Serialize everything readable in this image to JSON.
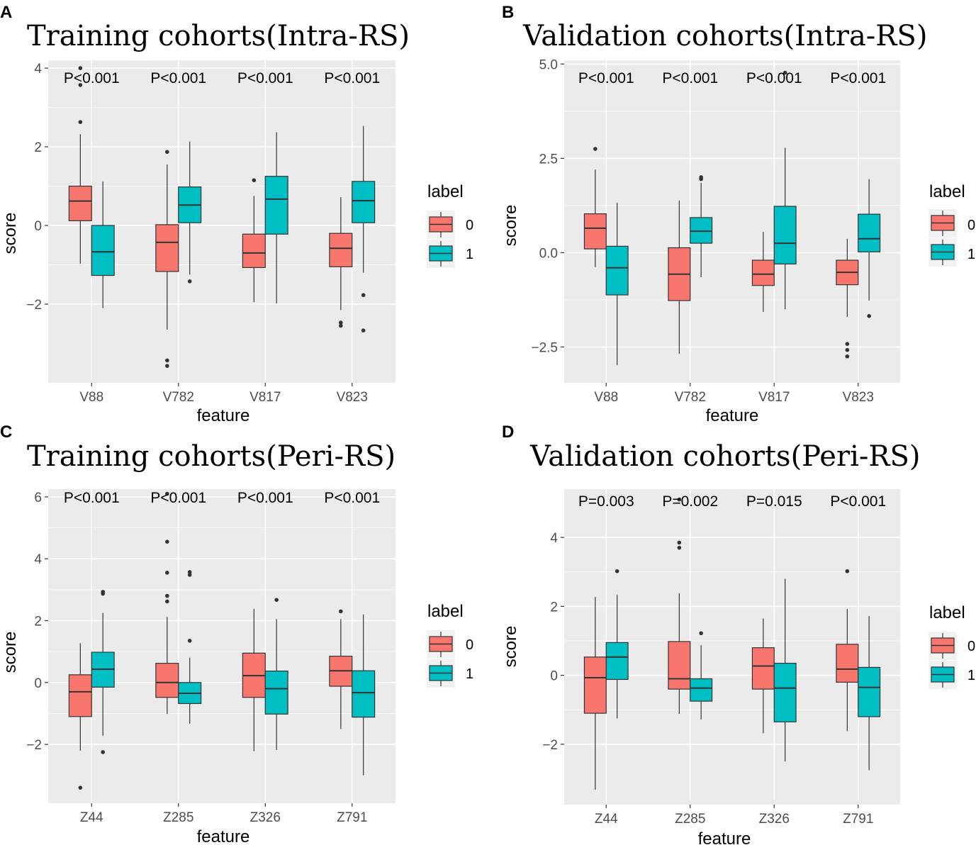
{
  "colors": {
    "panel_bg": "#ebebeb",
    "grid": "#ffffff",
    "group0": "#f8766d",
    "group1": "#00bfc4",
    "box_line": "#333333"
  },
  "chart_data": [
    {
      "type": "boxplot",
      "panel_label": "A",
      "title": "Training cohorts(Intra-RS)",
      "xlabel": "feature",
      "ylabel": "score",
      "ylim": [
        -4.0,
        4.2
      ],
      "yticks": [
        -2,
        0,
        2,
        4
      ],
      "ytick_labels": [
        "−2",
        "0",
        "2",
        "4"
      ],
      "categories": [
        "V88",
        "V782",
        "V817",
        "V823"
      ],
      "pvalues": [
        "P<0.001",
        "P<0.001",
        "P<0.001",
        "P<0.001"
      ],
      "legend": {
        "title": "label",
        "entries": [
          "0",
          "1"
        ]
      },
      "series": [
        {
          "name": "0",
          "boxes": [
            {
              "lw": -0.97,
              "q1": 0.12,
              "med": 0.62,
              "q3": 1.0,
              "uw": 2.32,
              "outliers": [
                2.63,
                3.57,
                4.0
              ]
            },
            {
              "lw": -2.65,
              "q1": -1.17,
              "med": -0.43,
              "q3": 0.02,
              "uw": 1.55,
              "outliers": [
                1.87,
                -3.43,
                -3.57
              ]
            },
            {
              "lw": -1.95,
              "q1": -1.07,
              "med": -0.7,
              "q3": -0.22,
              "uw": 0.75,
              "outliers": [
                1.15
              ]
            },
            {
              "lw": -2.15,
              "q1": -1.05,
              "med": -0.58,
              "q3": -0.2,
              "uw": 0.72,
              "outliers": [
                -2.47,
                -2.55
              ]
            }
          ]
        },
        {
          "name": "1",
          "boxes": [
            {
              "lw": -2.1,
              "q1": -1.27,
              "med": -0.67,
              "q3": 0.0,
              "uw": 1.12,
              "outliers": []
            },
            {
              "lw": -1.25,
              "q1": 0.07,
              "med": 0.52,
              "q3": 0.98,
              "uw": 2.13,
              "outliers": [
                -1.42
              ]
            },
            {
              "lw": -1.98,
              "q1": -0.22,
              "med": 0.67,
              "q3": 1.25,
              "uw": 2.37,
              "outliers": []
            },
            {
              "lw": -1.2,
              "q1": 0.07,
              "med": 0.63,
              "q3": 1.12,
              "uw": 2.53,
              "outliers": [
                -1.77,
                -2.67
              ]
            }
          ]
        }
      ]
    },
    {
      "type": "boxplot",
      "panel_label": "B",
      "title": "Validation cohorts(Intra-RS)",
      "xlabel": "feature",
      "ylabel": "score",
      "ylim": [
        -3.45,
        5.1
      ],
      "yticks": [
        -2.5,
        0.0,
        2.5,
        5.0
      ],
      "ytick_labels": [
        "−2.5",
        "0.0",
        "2.5",
        "5.0"
      ],
      "categories": [
        "V88",
        "V782",
        "V817",
        "V823"
      ],
      "pvalues": [
        "P<0.001",
        "P<0.001",
        "P<0.001",
        "P<0.001"
      ],
      "legend": {
        "title": "label",
        "entries": [
          "0",
          "1"
        ]
      },
      "series": [
        {
          "name": "0",
          "boxes": [
            {
              "lw": -0.38,
              "q1": 0.1,
              "med": 0.65,
              "q3": 1.03,
              "uw": 2.2,
              "outliers": [
                2.75
              ]
            },
            {
              "lw": -2.68,
              "q1": -1.27,
              "med": -0.57,
              "q3": 0.13,
              "uw": 1.38,
              "outliers": []
            },
            {
              "lw": -1.57,
              "q1": -0.87,
              "med": -0.57,
              "q3": -0.2,
              "uw": 0.55,
              "outliers": []
            },
            {
              "lw": -1.7,
              "q1": -0.85,
              "med": -0.52,
              "q3": -0.2,
              "uw": 0.37,
              "outliers": [
                -2.42,
                -2.58,
                -2.75
              ]
            }
          ]
        },
        {
          "name": "1",
          "boxes": [
            {
              "lw": -2.98,
              "q1": -1.12,
              "med": -0.4,
              "q3": 0.17,
              "uw": 1.32,
              "outliers": []
            },
            {
              "lw": -0.65,
              "q1": 0.25,
              "med": 0.57,
              "q3": 0.93,
              "uw": 1.85,
              "outliers": [
                1.95,
                2.0
              ]
            },
            {
              "lw": -1.5,
              "q1": -0.3,
              "med": 0.25,
              "q3": 1.23,
              "uw": 2.78,
              "outliers": [
                4.77
              ]
            },
            {
              "lw": -1.27,
              "q1": 0.02,
              "med": 0.37,
              "q3": 1.02,
              "uw": 1.95,
              "outliers": [
                -1.68
              ]
            }
          ]
        }
      ]
    },
    {
      "type": "boxplot",
      "panel_label": "C",
      "title": "Training cohorts(Peri-RS)",
      "xlabel": "feature",
      "ylabel": "score",
      "ylim": [
        -3.9,
        6.25
      ],
      "yticks": [
        -2,
        0,
        2,
        4,
        6
      ],
      "ytick_labels": [
        "−2",
        "0",
        "2",
        "4",
        "6"
      ],
      "categories": [
        "Z44",
        "Z285",
        "Z326",
        "Z791"
      ],
      "pvalues": [
        "P<0.001",
        "P<0.001",
        "P<0.001",
        "P<0.001"
      ],
      "legend": {
        "title": "label",
        "entries": [
          "0",
          "1"
        ]
      },
      "series": [
        {
          "name": "0",
          "boxes": [
            {
              "lw": -2.2,
              "q1": -1.1,
              "med": -0.3,
              "q3": 0.25,
              "uw": 1.27,
              "outliers": [
                -3.4
              ]
            },
            {
              "lw": -1.02,
              "q1": -0.48,
              "med": 0.0,
              "q3": 0.62,
              "uw": 2.12,
              "outliers": [
                2.62,
                2.8,
                3.55,
                4.55,
                6.1
              ]
            },
            {
              "lw": -2.22,
              "q1": -0.48,
              "med": 0.22,
              "q3": 0.95,
              "uw": 2.38,
              "outliers": []
            },
            {
              "lw": -1.5,
              "q1": -0.12,
              "med": 0.38,
              "q3": 0.85,
              "uw": 2.05,
              "outliers": [
                2.3
              ]
            }
          ]
        },
        {
          "name": "1",
          "boxes": [
            {
              "lw": -1.72,
              "q1": -0.15,
              "med": 0.43,
              "q3": 0.98,
              "uw": 2.25,
              "outliers": [
                2.87,
                2.93,
                -2.25
              ]
            },
            {
              "lw": -1.33,
              "q1": -0.68,
              "med": -0.35,
              "q3": 0.0,
              "uw": 0.8,
              "outliers": [
                1.35,
                3.48,
                3.57
              ]
            },
            {
              "lw": -2.18,
              "q1": -1.02,
              "med": -0.2,
              "q3": 0.37,
              "uw": 2.05,
              "outliers": [
                2.67
              ]
            },
            {
              "lw": -3.0,
              "q1": -1.12,
              "med": -0.33,
              "q3": 0.38,
              "uw": 2.2,
              "outliers": []
            }
          ]
        }
      ]
    },
    {
      "type": "boxplot",
      "panel_label": "D",
      "title": "Validation cohorts(Peri-RS)",
      "xlabel": "feature",
      "ylabel": "score",
      "ylim": [
        -3.75,
        5.4
      ],
      "yticks": [
        -2,
        0,
        2,
        4
      ],
      "ytick_labels": [
        "−2",
        "0",
        "2",
        "4"
      ],
      "categories": [
        "Z44",
        "Z285",
        "Z326",
        "Z791"
      ],
      "pvalues": [
        "P=0.003",
        "P=0.002",
        "P=0.015",
        "P<0.001"
      ],
      "legend": {
        "title": "label",
        "entries": [
          "0",
          "1"
        ]
      },
      "series": [
        {
          "name": "0",
          "boxes": [
            {
              "lw": -3.32,
              "q1": -1.1,
              "med": -0.07,
              "q3": 0.53,
              "uw": 2.27,
              "outliers": []
            },
            {
              "lw": -1.12,
              "q1": -0.4,
              "med": -0.1,
              "q3": 0.98,
              "uw": 2.38,
              "outliers": [
                3.7,
                3.85,
                5.1
              ]
            },
            {
              "lw": -1.68,
              "q1": -0.4,
              "med": 0.27,
              "q3": 0.8,
              "uw": 1.65,
              "outliers": []
            },
            {
              "lw": -1.62,
              "q1": -0.2,
              "med": 0.18,
              "q3": 0.9,
              "uw": 1.92,
              "outliers": [
                3.02
              ]
            }
          ]
        },
        {
          "name": "1",
          "boxes": [
            {
              "lw": -1.25,
              "q1": -0.12,
              "med": 0.53,
              "q3": 0.95,
              "uw": 2.33,
              "outliers": [
                3.02
              ]
            },
            {
              "lw": -1.28,
              "q1": -0.75,
              "med": -0.37,
              "q3": -0.1,
              "uw": 0.87,
              "outliers": [
                1.22
              ]
            },
            {
              "lw": -2.5,
              "q1": -1.35,
              "med": -0.37,
              "q3": 0.35,
              "uw": 2.8,
              "outliers": []
            },
            {
              "lw": -2.75,
              "q1": -1.2,
              "med": -0.35,
              "q3": 0.23,
              "uw": 1.72,
              "outliers": []
            }
          ]
        }
      ]
    }
  ]
}
